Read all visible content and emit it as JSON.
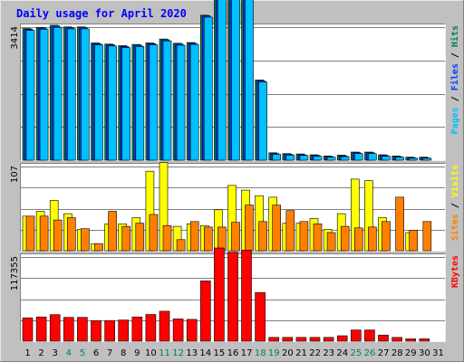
{
  "chart_data": {
    "type": "bar",
    "title": "Daily usage for April 2020",
    "colors": {
      "background": "#c0c0c0",
      "plot": "#ffffff",
      "title": "#0000ff",
      "grid": "#808080",
      "hits": "#00805c",
      "files": "#0040ff",
      "pages": "#00c0ff",
      "visits": "#ffff00",
      "sites": "#ff8000",
      "kbytes": "#ff0000",
      "weekend": "#00805c",
      "weekday": "#000000"
    },
    "categories": [
      "1",
      "2",
      "3",
      "4",
      "5",
      "6",
      "7",
      "8",
      "9",
      "10",
      "11",
      "12",
      "13",
      "14",
      "15",
      "16",
      "17",
      "18",
      "19",
      "20",
      "21",
      "22",
      "23",
      "24",
      "25",
      "26",
      "27",
      "28",
      "29",
      "30",
      "31"
    ],
    "weekend_days": [
      "4",
      "5",
      "11",
      "12",
      "18",
      "19",
      "25",
      "26"
    ],
    "panels": [
      {
        "id": "usage",
        "ymax_label": "3414",
        "ymax": 3414,
        "legend": [
          {
            "text": "Pages",
            "color": "#00c0ff"
          },
          {
            "text": "Files",
            "color": "#0040ff"
          },
          {
            "text": "Hits",
            "color": "#00805c"
          }
        ],
        "series": [
          {
            "name": "Hits",
            "color": "#00805c",
            "values": [
              3380,
              3410,
              3460,
              3420,
              3420,
              3010,
              2980,
              2940,
              2970,
              3010,
              3110,
              3000,
              3020,
              3720,
              4320,
              4300,
              4180,
              2060,
              190,
              170,
              160,
              140,
              110,
              130,
              210,
              210,
              140,
              110,
              80,
              80
            ]
          },
          {
            "name": "Files",
            "color": "#0040ff",
            "values": [
              3360,
              3390,
              3440,
              3400,
              3400,
              2990,
              2960,
              2920,
              2950,
              2990,
              3090,
              2980,
              3000,
              3700,
              4300,
              4280,
              4160,
              2040,
              170,
              150,
              140,
              120,
              90,
              110,
              190,
              190,
              120,
              90,
              60,
              60
            ]
          },
          {
            "name": "Pages",
            "color": "#00c0ff",
            "values": [
              3330,
              3360,
              3410,
              3370,
              3370,
              2960,
              2930,
              2890,
              2920,
              2960,
              3060,
              2950,
              2970,
              3670,
              4270,
              4250,
              4130,
              2010,
              150,
              130,
              120,
              100,
              80,
              90,
              170,
              170,
              100,
              80,
              50,
              50
            ]
          }
        ]
      },
      {
        "id": "visits",
        "ymax_label": "107",
        "ymax": 107,
        "legend": [
          {
            "text": "Sites",
            "color": "#ff8000"
          },
          {
            "text": "Visits",
            "color": "#ffff00"
          }
        ],
        "series": [
          {
            "name": "Visits",
            "color": "#ffff00",
            "values": [
              44,
              50,
              64,
              47,
              27,
              9,
              34,
              34,
              42,
              101,
              112,
              31,
              34,
              32,
              52,
              83,
              77,
              70,
              68,
              35,
              35,
              41,
              27,
              47,
              91,
              89,
              42,
              0,
              23,
              0
            ]
          },
          {
            "name": "Sites",
            "color": "#ff8000",
            "values": [
              44,
              44,
              39,
              42,
              28,
              9,
              50,
              31,
              35,
              46,
              32,
              14,
              37,
              30,
              30,
              36,
              58,
              37,
              58,
              51,
              37,
              34,
              23,
              31,
              29,
              30,
              37,
              68,
              26,
              37
            ]
          }
        ]
      },
      {
        "id": "kbytes",
        "ymax_label": "117355",
        "ymax": 117355,
        "legend": [
          {
            "text": "KBytes",
            "color": "#ff0000"
          }
        ],
        "series": [
          {
            "name": "KBytes",
            "color": "#ff0000",
            "values": [
              32500,
              33800,
              37000,
              33200,
              33200,
              28800,
              28800,
              29500,
              33800,
              37200,
              41800,
              31000,
              30400,
              84000,
              130000,
              124000,
              127000,
              67800,
              5300,
              5300,
              5300,
              5300,
              5300,
              7600,
              15700,
              15700,
              8600,
              5300,
              3300,
              3300
            ]
          }
        ]
      }
    ]
  }
}
